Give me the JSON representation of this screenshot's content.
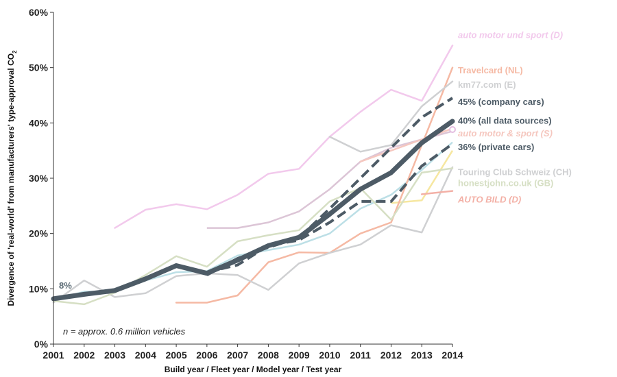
{
  "chart_data": {
    "type": "line",
    "title": "",
    "xlabel": "Build year / Fleet year / Model year / Test year",
    "ylabel": "Divergence of 'real-world' from manufacturers' type-approval CO",
    "ylabel_subscript": "2",
    "xlim": [
      2001,
      2014
    ],
    "ylim": [
      0,
      60
    ],
    "y_ticks": [
      "0%",
      "10%",
      "20%",
      "30%",
      "40%",
      "50%",
      "60%"
    ],
    "x_ticks": [
      "2001",
      "2002",
      "2003",
      "2004",
      "2005",
      "2006",
      "2007",
      "2008",
      "2009",
      "2010",
      "2011",
      "2012",
      "2013",
      "2014"
    ],
    "grid": false,
    "annotations": {
      "start_value": "8%",
      "sample_note": "n = approx. 0.6 million vehicles"
    },
    "series": [
      {
        "name": "auto motor und sport (D)",
        "color": "#f2c9ec",
        "style": "solid",
        "italic": true,
        "points": [
          [
            2003,
            21
          ],
          [
            2004,
            24.3
          ],
          [
            2005,
            25.3
          ],
          [
            2006,
            24.4
          ],
          [
            2007,
            27
          ],
          [
            2008,
            30.8
          ],
          [
            2009,
            31.7
          ],
          [
            2010,
            37.5
          ],
          [
            2011,
            42
          ],
          [
            2012,
            46
          ],
          [
            2013,
            44
          ],
          [
            2014,
            54
          ]
        ]
      },
      {
        "name": "Travelcard (NL)",
        "color": "#f5b9a4",
        "style": "solid",
        "points": [
          [
            2005,
            7.5
          ],
          [
            2006,
            7.5
          ],
          [
            2007,
            8.8
          ],
          [
            2008,
            14.8
          ],
          [
            2009,
            16.6
          ],
          [
            2010,
            16.5
          ],
          [
            2011,
            20
          ],
          [
            2012,
            22
          ],
          [
            2013,
            36
          ],
          [
            2014,
            50
          ]
        ]
      },
      {
        "name": "km77.com (E)",
        "color": "#cfd0d2",
        "style": "solid",
        "points": [
          [
            2010,
            37.5
          ],
          [
            2011,
            34.8
          ],
          [
            2012,
            36
          ],
          [
            2013,
            43
          ],
          [
            2014,
            47.5
          ]
        ]
      },
      {
        "name": "45% (company cars)",
        "color": "#4d5b66",
        "style": "dashed",
        "points": [
          [
            2006,
            12.5
          ],
          [
            2007,
            15.5
          ],
          [
            2008,
            17.5
          ],
          [
            2009,
            19.2
          ],
          [
            2010,
            24.5
          ],
          [
            2011,
            30
          ],
          [
            2012,
            35.5
          ],
          [
            2013,
            41
          ],
          [
            2014,
            44.5
          ]
        ]
      },
      {
        "name": "40% (all data sources)",
        "color": "#4d5b66",
        "style": "thick",
        "points": [
          [
            2001,
            8.2
          ],
          [
            2002,
            9
          ],
          [
            2003,
            9.7
          ],
          [
            2004,
            11.8
          ],
          [
            2005,
            14.2
          ],
          [
            2006,
            12.8
          ],
          [
            2007,
            15.2
          ],
          [
            2008,
            17.8
          ],
          [
            2009,
            19.3
          ],
          [
            2010,
            23.5
          ],
          [
            2011,
            28
          ],
          [
            2012,
            31
          ],
          [
            2013,
            36.4
          ],
          [
            2014,
            40.3
          ]
        ]
      },
      {
        "name": "auto motor & sport (S)",
        "color": "#f5c7bf",
        "style": "solid",
        "italic": true,
        "points": [
          [
            2011,
            33
          ],
          [
            2012,
            35
          ],
          [
            2013,
            37
          ],
          [
            2014,
            39
          ]
        ]
      },
      {
        "name": "36% (private cars)",
        "color": "#4d5b66",
        "style": "dashed",
        "points": [
          [
            2006,
            13
          ],
          [
            2007,
            14.3
          ],
          [
            2008,
            17.8
          ],
          [
            2009,
            18.8
          ],
          [
            2010,
            22
          ],
          [
            2011,
            25.8
          ],
          [
            2012,
            25.8
          ],
          [
            2013,
            32.2
          ],
          [
            2014,
            36.2
          ]
        ]
      },
      {
        "name": "Touring Club Schweiz (CH)",
        "color": "#cfd0d2",
        "style": "solid",
        "points": [
          [
            2001,
            7.5
          ],
          [
            2002,
            11.5
          ],
          [
            2003,
            8.5
          ],
          [
            2004,
            9.2
          ],
          [
            2005,
            12.3
          ],
          [
            2006,
            12.8
          ],
          [
            2007,
            12.5
          ],
          [
            2008,
            9.8
          ],
          [
            2009,
            14.6
          ],
          [
            2010,
            16.5
          ],
          [
            2011,
            18
          ],
          [
            2012,
            21.5
          ],
          [
            2013,
            20.2
          ],
          [
            2014,
            32
          ]
        ]
      },
      {
        "name": "honestjohn.co.uk (GB)",
        "color": "#d6dfc4",
        "style": "solid",
        "points": [
          [
            2001,
            7.8
          ],
          [
            2002,
            7.2
          ],
          [
            2003,
            9.3
          ],
          [
            2004,
            12.5
          ],
          [
            2005,
            15.9
          ],
          [
            2006,
            14
          ],
          [
            2007,
            18.6
          ],
          [
            2008,
            19.7
          ],
          [
            2009,
            20.6
          ],
          [
            2010,
            25.8
          ],
          [
            2011,
            28.2
          ],
          [
            2012,
            22.5
          ],
          [
            2013,
            31
          ],
          [
            2014,
            31.8
          ]
        ]
      },
      {
        "name": "AUTO BILD (D)",
        "color": "#f3b0a6",
        "style": "solid",
        "italic": true,
        "points": [
          [
            2013,
            27.1
          ],
          [
            2014,
            27.7
          ]
        ]
      }
    ],
    "extra_series": [
      {
        "color": "#dcc5d6",
        "points": [
          [
            2006,
            21
          ],
          [
            2007,
            21
          ],
          [
            2008,
            22
          ],
          [
            2009,
            24
          ],
          [
            2010,
            28
          ],
          [
            2011,
            33
          ],
          [
            2012,
            35.5
          ],
          [
            2013,
            37
          ],
          [
            2014,
            38.5
          ]
        ]
      },
      {
        "color": "#bcdfe6",
        "points": [
          [
            2001,
            8
          ],
          [
            2002,
            9.5
          ],
          [
            2003,
            9.5
          ],
          [
            2004,
            11.5
          ],
          [
            2005,
            13
          ],
          [
            2006,
            13.2
          ],
          [
            2007,
            16
          ],
          [
            2008,
            17
          ],
          [
            2009,
            18
          ],
          [
            2010,
            20
          ],
          [
            2011,
            24.5
          ],
          [
            2012,
            27
          ],
          [
            2013,
            31.5
          ],
          [
            2014,
            36.5
          ]
        ]
      },
      {
        "color": "#f6e7a0",
        "points": [
          [
            2012,
            25.5
          ],
          [
            2013,
            26
          ],
          [
            2014,
            35
          ]
        ]
      }
    ],
    "legend_labels": [
      {
        "text": "auto motor und sport (D)",
        "color": "#f2c9ec",
        "italic": true,
        "value": 56
      },
      {
        "text": "Travelcard (NL)",
        "color": "#f5b9a4",
        "italic": false,
        "value": 49.6
      },
      {
        "text": "km77.com (E)",
        "color": "#cfd0d2",
        "italic": false,
        "value": 47
      },
      {
        "text": "45% (company cars)",
        "color": "#4d5b66",
        "italic": false,
        "value": 43.9
      },
      {
        "text": "40% (all data sources)",
        "color": "#4d5b66",
        "italic": false,
        "value": 40.5
      },
      {
        "text": "auto motor & sport (S)",
        "color": "#f5c7bf",
        "italic": true,
        "value": 38.2
      },
      {
        "text": "36% (private cars)",
        "color": "#4d5b66",
        "italic": false,
        "value": 35.7
      },
      {
        "text": "Touring Club Schweiz (CH)",
        "color": "#cfd0d2",
        "italic": false,
        "value": 31.2
      },
      {
        "text": "honestjohn.co.uk (GB)",
        "color": "#d6dfc4",
        "italic": false,
        "value": 29.2
      },
      {
        "text": "AUTO BILD (D)",
        "color": "#f3b0a6",
        "italic": true,
        "value": 26.2
      }
    ]
  }
}
